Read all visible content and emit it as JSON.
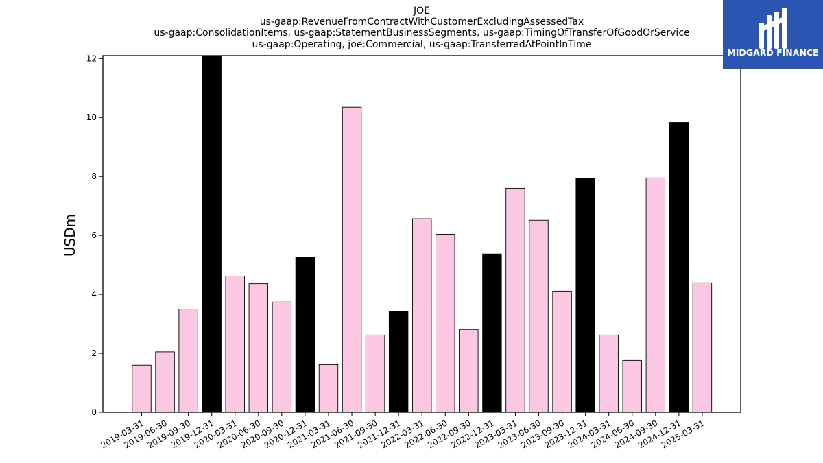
{
  "chart_data": {
    "type": "bar",
    "title_lines": [
      "JOE",
      "us-gaap:RevenueFromContractWithCustomerExcludingAssessedTax",
      "us-gaap:ConsolidationItems, us-gaap:StatementBusinessSegments, us-gaap:TimingOfTransferOfGoodOrService",
      "us-gaap:Operating, joe:Commercial, us-gaap:TransferredAtPointInTime"
    ],
    "ylabel": "USDm",
    "xlabel": "",
    "ylim": [
      0,
      12.1
    ],
    "yticks": [
      0,
      2,
      4,
      6,
      8,
      10,
      12
    ],
    "grid": false,
    "categories": [
      "2019-03-31",
      "2019-06-30",
      "2019-09-30",
      "2019-12-31",
      "2020-03-31",
      "2020-06-30",
      "2020-09-30",
      "2020-12-31",
      "2021-03-31",
      "2021-06-30",
      "2021-09-30",
      "2021-12-31",
      "2022-03-31",
      "2022-06-30",
      "2022-09-30",
      "2022-12-31",
      "2023-03-31",
      "2023-06-30",
      "2023-09-30",
      "2023-12-31",
      "2024-03-31",
      "2024-06-30",
      "2024-09-30",
      "2024-12-31",
      "2025-03-31"
    ],
    "values": [
      1.6,
      2.05,
      3.5,
      12.2,
      4.62,
      4.36,
      3.74,
      5.25,
      1.62,
      10.35,
      2.62,
      3.42,
      6.56,
      6.04,
      2.81,
      5.37,
      7.6,
      6.51,
      4.11,
      7.93,
      2.62,
      1.76,
      7.95,
      9.83,
      4.39
    ],
    "highlight_every": "12-31",
    "colors": {
      "bar": "#fbc8e3",
      "bar_highlight": "#000000",
      "edge": "#000000"
    }
  },
  "logo": {
    "text": "MIDGARD FINANCE",
    "background": "#2b56b4"
  }
}
